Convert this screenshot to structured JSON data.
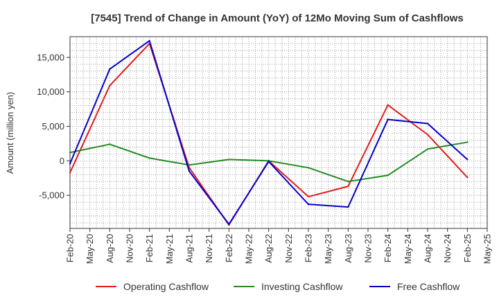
{
  "chart_data": {
    "type": "line",
    "title": "[7545]  Trend of Change in Amount (YoY) of 12Mo Moving Sum of Cashflows",
    "xlabel": "",
    "ylabel": "Amount (million yen)",
    "ylim": [
      -9800,
      18000
    ],
    "y_ticks": [
      -5000,
      0,
      5000,
      10000,
      15000
    ],
    "y_tick_labels": [
      "-5,000",
      "0",
      "5,000",
      "10,000",
      "15,000"
    ],
    "grid": true,
    "legend_position": "bottom",
    "categories": [
      "Feb-20",
      "May-20",
      "Aug-20",
      "Nov-20",
      "Feb-21",
      "May-21",
      "Aug-21",
      "Nov-21",
      "Feb-22",
      "May-22",
      "Aug-22",
      "Nov-22",
      "Feb-23",
      "May-23",
      "Aug-23",
      "Nov-23",
      "Feb-24",
      "May-24",
      "Aug-24",
      "Nov-24",
      "Feb-25",
      "May-25"
    ],
    "series": [
      {
        "name": "Operating Cashflow",
        "color": "#e31a1c",
        "points": [
          {
            "x": "Feb-20",
            "y": -1700
          },
          {
            "x": "Aug-20",
            "y": 10900
          },
          {
            "x": "Feb-21",
            "y": 17000
          },
          {
            "x": "Aug-21",
            "y": -1000
          },
          {
            "x": "Feb-22",
            "y": -9300
          },
          {
            "x": "Aug-22",
            "y": 0
          },
          {
            "x": "Feb-23",
            "y": -5200
          },
          {
            "x": "Aug-23",
            "y": -3700
          },
          {
            "x": "Feb-24",
            "y": 8100
          },
          {
            "x": "Aug-24",
            "y": 3800
          },
          {
            "x": "Feb-25",
            "y": -2400
          }
        ]
      },
      {
        "name": "Investing Cashflow",
        "color": "#228b22",
        "points": [
          {
            "x": "Feb-20",
            "y": 1200
          },
          {
            "x": "Aug-20",
            "y": 2400
          },
          {
            "x": "Feb-21",
            "y": 400
          },
          {
            "x": "Aug-21",
            "y": -600
          },
          {
            "x": "Feb-22",
            "y": 200
          },
          {
            "x": "Aug-22",
            "y": 0
          },
          {
            "x": "Feb-23",
            "y": -1000
          },
          {
            "x": "Aug-23",
            "y": -3000
          },
          {
            "x": "Feb-24",
            "y": -2100
          },
          {
            "x": "Aug-24",
            "y": 1700
          },
          {
            "x": "Feb-25",
            "y": 2700
          }
        ]
      },
      {
        "name": "Free Cashflow",
        "color": "#0000cc",
        "points": [
          {
            "x": "Feb-20",
            "y": -400
          },
          {
            "x": "Aug-20",
            "y": 13300
          },
          {
            "x": "Feb-21",
            "y": 17400
          },
          {
            "x": "Aug-21",
            "y": -1500
          },
          {
            "x": "Feb-22",
            "y": -9200
          },
          {
            "x": "Aug-22",
            "y": -100
          },
          {
            "x": "Feb-23",
            "y": -6300
          },
          {
            "x": "Aug-23",
            "y": -6700
          },
          {
            "x": "Feb-24",
            "y": 6000
          },
          {
            "x": "Aug-24",
            "y": 5400
          },
          {
            "x": "Feb-25",
            "y": 200
          }
        ]
      }
    ]
  }
}
